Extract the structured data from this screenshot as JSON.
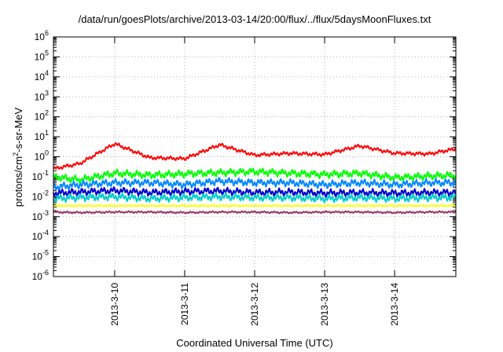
{
  "chart_data": {
    "type": "line",
    "title": "/data/run/goesPlots/archive/2013-03-14/20:00/flux/../flux/5daysMoonFluxes.txt",
    "xlabel": "Coordinated Universal Time (UTC)",
    "ylabel": {
      "pre": "protons/cm",
      "sup": "2",
      "post": "-s-sr-MeV"
    },
    "yscale": "log",
    "ylim": [
      1e-06,
      1000000.0
    ],
    "xlim": [
      "2013-03-09 03:00",
      "2013-03-14 21:00"
    ],
    "grid": true,
    "legend": "none",
    "y_ticks": [
      {
        "base": "10",
        "exp": "6",
        "value": 1000000.0
      },
      {
        "base": "10",
        "exp": "5",
        "value": 100000.0
      },
      {
        "base": "10",
        "exp": "4",
        "value": 10000.0
      },
      {
        "base": "10",
        "exp": "3",
        "value": 1000.0
      },
      {
        "base": "10",
        "exp": "2",
        "value": 100.0
      },
      {
        "base": "10",
        "exp": "1",
        "value": 10.0
      },
      {
        "base": "10",
        "exp": "0",
        "value": 1.0
      },
      {
        "base": "10",
        "exp": "-1",
        "value": 0.1
      },
      {
        "base": "10",
        "exp": "-2",
        "value": 0.01
      },
      {
        "base": "10",
        "exp": "-3",
        "value": 0.001
      },
      {
        "base": "10",
        "exp": "-4",
        "value": 0.0001
      },
      {
        "base": "10",
        "exp": "-5",
        "value": 1e-05
      },
      {
        "base": "10",
        "exp": "-6",
        "value": 1e-06
      }
    ],
    "x_ticks": [
      "2013-3-10",
      "2013-3-11",
      "2013-3-12",
      "2013-3-13",
      "2013-3-14"
    ],
    "x_dates": [
      "2013-03-09 03:00",
      "2013-03-09 12:00",
      "2013-03-10 00:00",
      "2013-03-10 12:00",
      "2013-03-11 00:00",
      "2013-03-11 12:00",
      "2013-03-12 00:00",
      "2013-03-12 12:00",
      "2013-03-13 00:00",
      "2013-03-13 12:00",
      "2013-03-14 00:00",
      "2013-03-14 12:00",
      "2013-03-14 21:00"
    ],
    "series": [
      {
        "color": "#ff0000",
        "values": [
          0.25,
          0.45,
          4.5,
          0.9,
          0.8,
          4.0,
          1.2,
          1.5,
          1.3,
          3.5,
          1.5,
          1.4,
          2.5
        ]
      },
      {
        "color": "#00ff00",
        "values": [
          0.1,
          0.07,
          0.15,
          0.12,
          0.14,
          0.16,
          0.18,
          0.15,
          0.13,
          0.15,
          0.09,
          0.11,
          0.12
        ]
      },
      {
        "color": "#0088ff",
        "values": [
          0.03,
          0.04,
          0.05,
          0.05,
          0.04,
          0.06,
          0.05,
          0.05,
          0.04,
          0.05,
          0.04,
          0.05,
          0.05
        ]
      },
      {
        "color": "#0000cc",
        "values": [
          0.015,
          0.017,
          0.02,
          0.016,
          0.018,
          0.019,
          0.016,
          0.017,
          0.015,
          0.016,
          0.015,
          0.016,
          0.016
        ]
      },
      {
        "color": "#00cccc",
        "values": [
          0.008,
          0.009,
          0.01,
          0.008,
          0.009,
          0.01,
          0.009,
          0.009,
          0.008,
          0.009,
          0.008,
          0.009,
          0.009
        ]
      },
      {
        "color": "#ffff00",
        "values": [
          0.0035,
          0.0035,
          0.0035,
          0.0035,
          0.0035,
          0.0035,
          0.0035,
          0.0035,
          0.0035,
          0.0035,
          0.0035,
          0.0035,
          0.0035
        ]
      },
      {
        "color": "#993366",
        "values": [
          0.0017,
          0.0016,
          0.0017,
          0.0017,
          0.0016,
          0.0017,
          0.0017,
          0.0016,
          0.0017,
          0.0017,
          0.0016,
          0.0017,
          0.0017
        ]
      }
    ]
  }
}
